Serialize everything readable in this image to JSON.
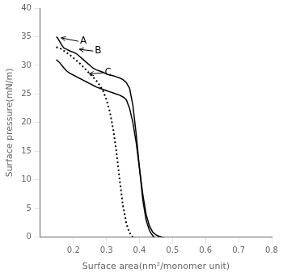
{
  "chart_data": {
    "type": "line",
    "xlabel": "Surface area(nm²/monomer unit)",
    "ylabel": "Surface pressure(mN/m)",
    "xlim": [
      0.1,
      0.8
    ],
    "ylim": [
      0,
      40
    ],
    "xticks": [
      0.2,
      0.3,
      0.4,
      0.5,
      0.6,
      0.7,
      0.8
    ],
    "yticks": [
      0,
      5,
      10,
      15,
      20,
      25,
      30,
      35,
      40
    ],
    "grid": false,
    "series": [
      {
        "color": "#000000",
        "line_style": "solid",
        "x": [
          0.148,
          0.152,
          0.158,
          0.165,
          0.172,
          0.18,
          0.19,
          0.2,
          0.21,
          0.22,
          0.23,
          0.24,
          0.25,
          0.26,
          0.27,
          0.28,
          0.29,
          0.3,
          0.31,
          0.32,
          0.33,
          0.34,
          0.35,
          0.36,
          0.37,
          0.38,
          0.39,
          0.4,
          0.41,
          0.42,
          0.43,
          0.435,
          0.44,
          0.445
        ],
        "values": [
          35.0,
          34.8,
          34.2,
          33.5,
          33.0,
          32.8,
          32.5,
          32.3,
          32.0,
          31.5,
          31.0,
          30.5,
          30.0,
          29.5,
          29.2,
          29.0,
          28.8,
          28.5,
          28.3,
          28.2,
          28.0,
          27.8,
          27.5,
          27.0,
          26.0,
          23.0,
          18.0,
          12.0,
          6.5,
          3.0,
          1.2,
          0.7,
          0.3,
          0.0
        ]
      },
      {
        "color": "#000000",
        "line_style": "dotted",
        "x": [
          0.148,
          0.152,
          0.158,
          0.165,
          0.172,
          0.18,
          0.19,
          0.2,
          0.21,
          0.22,
          0.23,
          0.24,
          0.25,
          0.26,
          0.27,
          0.28,
          0.29,
          0.3,
          0.31,
          0.32,
          0.33,
          0.34,
          0.35,
          0.36,
          0.368,
          0.374,
          0.38
        ],
        "values": [
          33.2,
          33.1,
          33.0,
          32.8,
          32.5,
          32.2,
          31.8,
          31.3,
          30.8,
          30.3,
          29.7,
          29.1,
          28.5,
          27.9,
          27.3,
          26.5,
          25.5,
          24.0,
          22.0,
          19.0,
          15.0,
          10.0,
          5.5,
          2.5,
          1.0,
          0.4,
          0.0
        ]
      },
      {
        "color": "#000000",
        "line_style": "solid",
        "x": [
          0.148,
          0.152,
          0.158,
          0.165,
          0.172,
          0.18,
          0.19,
          0.2,
          0.21,
          0.22,
          0.23,
          0.24,
          0.25,
          0.26,
          0.27,
          0.28,
          0.29,
          0.3,
          0.31,
          0.32,
          0.33,
          0.34,
          0.35,
          0.36,
          0.37,
          0.38,
          0.39,
          0.4,
          0.41,
          0.42,
          0.43,
          0.44,
          0.45,
          0.46,
          0.468,
          0.475
        ],
        "values": [
          31.0,
          30.8,
          30.5,
          30.0,
          29.5,
          29.0,
          28.6,
          28.3,
          28.0,
          27.7,
          27.4,
          27.1,
          26.8,
          26.5,
          26.2,
          26.0,
          25.8,
          25.6,
          25.4,
          25.2,
          25.0,
          24.8,
          24.5,
          24.0,
          22.5,
          20.0,
          16.5,
          12.0,
          7.5,
          4.0,
          2.0,
          0.9,
          0.4,
          0.15,
          0.05,
          0.0
        ]
      }
    ],
    "annotations": [
      {
        "text": "A",
        "x": 0.22,
        "y": 34.2,
        "arrow_x": 0.163,
        "arrow_y": 34.8
      },
      {
        "text": "B",
        "x": 0.265,
        "y": 32.5,
        "arrow_x": 0.218,
        "arrow_y": 32.8
      },
      {
        "text": "C",
        "x": 0.295,
        "y": 28.7,
        "arrow_x": 0.248,
        "arrow_y": 28.5
      }
    ]
  }
}
